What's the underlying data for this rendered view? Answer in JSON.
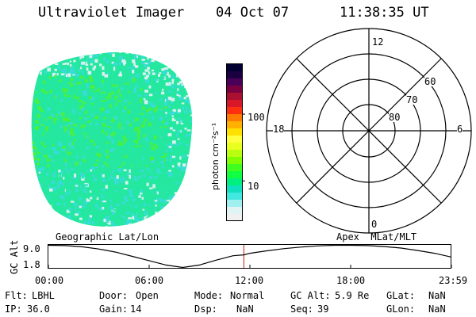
{
  "header": {
    "instrument": "Ultraviolet Imager",
    "date": "04 Oct 07",
    "time": "11:38:35 UT"
  },
  "colorbar": {
    "unit": "photon cm⁻²s⁻¹",
    "scale": "log",
    "tick_labels": [
      "100",
      "10"
    ],
    "tick_values": [
      100,
      10
    ],
    "range": [
      2.5,
      560
    ],
    "colors": [
      "#000033",
      "#1a0040",
      "#4a0058",
      "#7a0040",
      "#aa1030",
      "#d81828",
      "#ff3010",
      "#ff7a00",
      "#ffb000",
      "#ffe000",
      "#ffff40",
      "#e8ff20",
      "#b8ff10",
      "#80ff00",
      "#40ff20",
      "#10ff40",
      "#00f080",
      "#10e0c0",
      "#40e8e0",
      "#a0f0f0",
      "#e0f4f4",
      "#f0f0f0"
    ]
  },
  "image_colors": {
    "base": "#24e8a0",
    "green": "#48f040",
    "cyan": "#38dcd8",
    "light": "#d8f0f0"
  },
  "polar_grid": {
    "mlt_labels": [
      "12",
      "18",
      "6",
      "0"
    ],
    "lat_labels": [
      "60",
      "70",
      "80"
    ]
  },
  "timeline": {
    "left_label": "Geographic Lat/Lon",
    "right_label": "Apex  MLat/MLT",
    "axis_title": "GC Alt",
    "y_labels": [
      "9.0",
      "1.8"
    ],
    "x_ticks": [
      "00:00",
      "06:00",
      "12:00",
      "18:00",
      "23:59"
    ],
    "current_marker_color": "#cc2200",
    "altitude_curve_re": [
      [
        0.0,
        9.0
      ],
      [
        1.0,
        8.9
      ],
      [
        2.0,
        8.5
      ],
      [
        3.0,
        7.8
      ],
      [
        4.0,
        6.8
      ],
      [
        5.0,
        5.4
      ],
      [
        6.0,
        4.0
      ],
      [
        7.0,
        2.6
      ],
      [
        8.0,
        1.8
      ],
      [
        9.0,
        2.6
      ],
      [
        10.0,
        4.2
      ],
      [
        11.0,
        5.6
      ],
      [
        11.64,
        5.9
      ],
      [
        12.0,
        6.4
      ],
      [
        13.0,
        7.2
      ],
      [
        14.0,
        7.9
      ],
      [
        15.0,
        8.4
      ],
      [
        16.0,
        8.8
      ],
      [
        17.0,
        9.0
      ],
      [
        18.0,
        9.0
      ],
      [
        19.0,
        8.9
      ],
      [
        20.0,
        8.6
      ],
      [
        21.0,
        8.1
      ],
      [
        22.0,
        7.3
      ],
      [
        23.0,
        6.4
      ],
      [
        23.98,
        5.2
      ]
    ],
    "current_time_hours": 11.64
  },
  "status": {
    "flt_label": "Flt:",
    "flt": "LBHL",
    "door_label": "Door:",
    "door": "Open",
    "mode_label": "Mode:",
    "mode": "Normal",
    "gcalt_label": "GC Alt:",
    "gcalt": "5.9 Re",
    "glat_label": "GLat:",
    "glat": "NaN",
    "ip_label": "IP:",
    "ip": "36.0",
    "gain_label": "Gain:",
    "gain": "14",
    "dsp_label": "Dsp:",
    "dsp": "NaN",
    "seq_label": "Seq:",
    "seq": "39",
    "glon_label": "GLon:",
    "glon": "NaN"
  }
}
